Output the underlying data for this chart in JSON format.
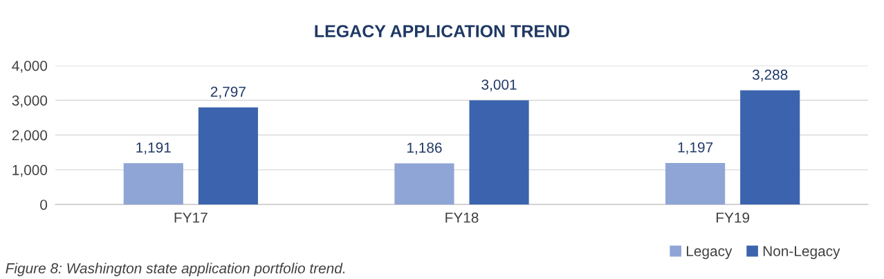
{
  "chart_data": {
    "type": "bar",
    "title": "LEGACY APPLICATION TREND",
    "categories": [
      "FY17",
      "FY18",
      "FY19"
    ],
    "series": [
      {
        "name": "Legacy",
        "color": "#8fa5d5",
        "values": [
          1191,
          1186,
          1197
        ],
        "value_labels": [
          "1,191",
          "1,186",
          "1,197"
        ]
      },
      {
        "name": "Non-Legacy",
        "color": "#3c64ae",
        "values": [
          2797,
          3001,
          3288
        ],
        "value_labels": [
          "2,797",
          "3,001",
          "3,288"
        ]
      }
    ],
    "ylim": [
      0,
      4000
    ],
    "yticks": [
      {
        "value": 0,
        "label": "0"
      },
      {
        "value": 1000,
        "label": "1,000"
      },
      {
        "value": 2000,
        "label": "2,000"
      },
      {
        "value": 3000,
        "label": "3,000"
      },
      {
        "value": 4000,
        "label": "4,000"
      }
    ],
    "grid": "y",
    "legend": "bottom right",
    "annotations": [
      "Figure 8: Washington state application portfolio trend."
    ]
  }
}
